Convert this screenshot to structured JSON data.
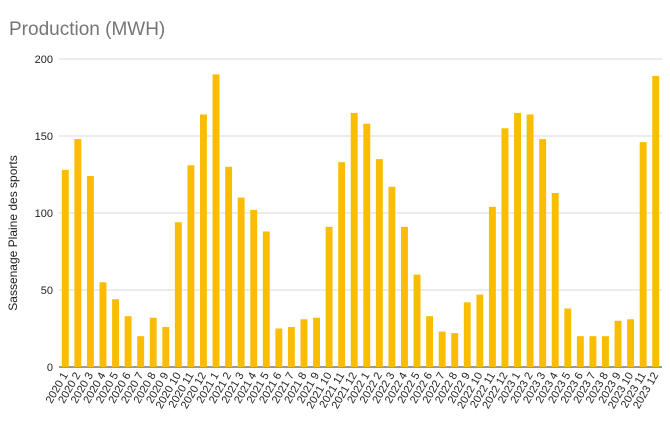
{
  "chart_data": {
    "type": "bar",
    "title": "Production (MWH)",
    "xlabel": "",
    "ylabel": "Sassenage Plaine des sports",
    "ylim": [
      0,
      200
    ],
    "yticks": [
      0,
      50,
      100,
      150,
      200
    ],
    "grid": true,
    "bar_color": "#FBBC04",
    "categories": [
      "2020 1",
      "2020 2",
      "2020 3",
      "2020 4",
      "2020 5",
      "2020 6",
      "2020 7",
      "2020 8",
      "2020 9",
      "2020 10",
      "2020 11",
      "2020 12",
      "2021 1",
      "2021 2",
      "2021 3",
      "2021 4",
      "2021 5",
      "2021 6",
      "2021 7",
      "2021 8",
      "2021 9",
      "2021 10",
      "2021 11",
      "2021 12",
      "2022 1",
      "2022 2",
      "2022 3",
      "2022 4",
      "2022 5",
      "2022 6",
      "2022 7",
      "2022 8",
      "2022 9",
      "2022 10",
      "2022 11",
      "2022 12",
      "2023 1",
      "2023 2",
      "2023 3",
      "2023 4",
      "2023 5",
      "2023 6",
      "2023 7",
      "2023 8",
      "2023 9",
      "2023 10",
      "2023 11",
      "2023 12"
    ],
    "values": [
      128,
      148,
      124,
      55,
      44,
      33,
      20,
      32,
      26,
      94,
      131,
      164,
      190,
      130,
      110,
      102,
      88,
      25,
      26,
      31,
      32,
      91,
      133,
      165,
      158,
      135,
      117,
      91,
      60,
      33,
      23,
      22,
      42,
      47,
      104,
      155,
      165,
      164,
      148,
      113,
      38,
      20,
      20,
      20,
      30,
      31,
      146,
      189
    ]
  }
}
